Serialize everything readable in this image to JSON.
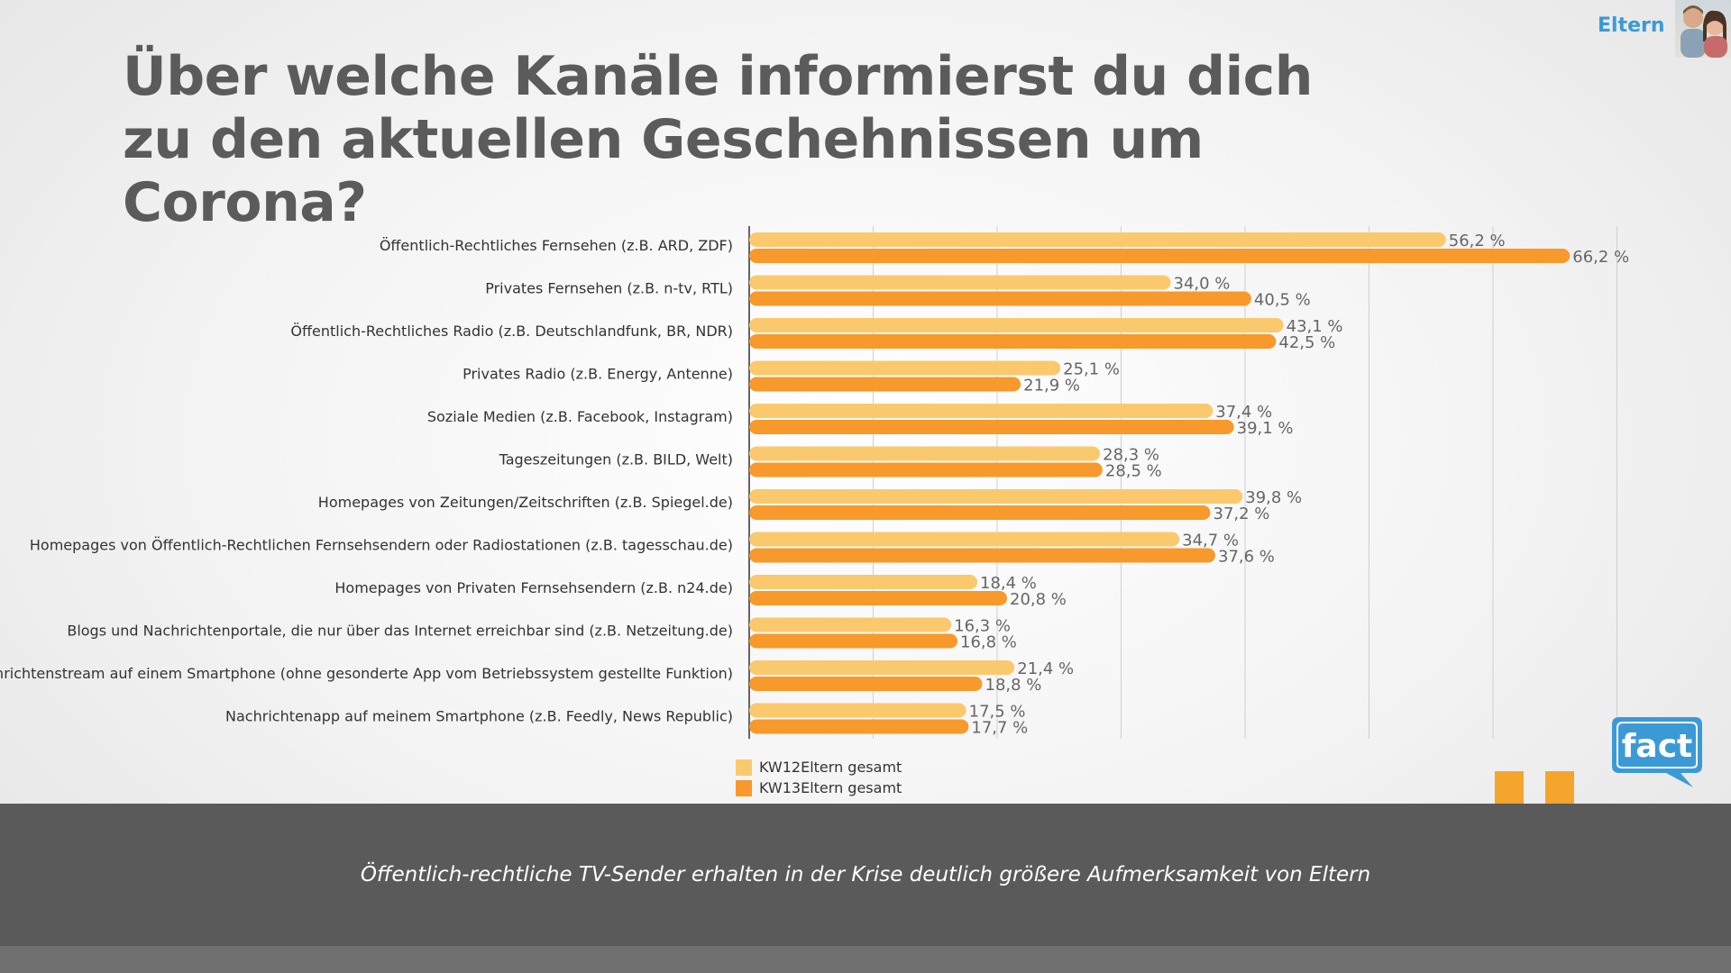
{
  "header": {
    "title": "Über welche Kanäle informierst du dich zu den aktuellen Geschehnissen um Corona?",
    "brand_label": "Eltern"
  },
  "footer": {
    "quote": "Öffentlich-rechtliche TV-Sender erhalten in der Krise deutlich größere Aufmerksamkeit von Eltern",
    "logo_text": "fact"
  },
  "colors": {
    "series1": "#fbc96d",
    "series2": "#f7992b",
    "title": "#5b5b5b",
    "brand": "#3b9ad6",
    "banner": "#5a5a5a"
  },
  "chart_data": {
    "type": "bar",
    "orientation": "horizontal",
    "title": "Über welche Kanäle informierst du dich zu den aktuellen Geschehnissen um Corona?",
    "categories": [
      "Öffentlich-Rechtliches Fernsehen (z.B. ARD, ZDF)",
      "Privates Fernsehen (z.B. n-tv, RTL)",
      "Öffentlich-Rechtliches Radio (z.B. Deutschlandfunk, BR, NDR)",
      "Privates Radio (z.B. Energy, Antenne)",
      "Soziale Medien (z.B. Facebook, Instagram)",
      "Tageszeitungen (z.B. BILD, Welt)",
      "Homepages von Zeitungen/Zeitschriften (z.B. Spiegel.de)",
      "Homepages von Öffentlich-Rechtlichen Fernsehsendern oder Radiostationen (z.B. tagesschau.de)",
      "Homepages von Privaten Fernsehsendern (z.B. n24.de)",
      "Blogs und Nachrichtenportale, die nur über das Internet erreichbar sind (z.B. Netzeitung.de)",
      "Nachrichtenstream auf einem Smartphone (ohne gesonderte App vom Betriebssystem gestellte Funktion)",
      "Nachrichtenapp auf meinem Smartphone (z.B. Feedly, News Republic)"
    ],
    "series": [
      {
        "name": "KW12Eltern gesamt",
        "values": [
          56.2,
          34.0,
          43.1,
          25.1,
          37.4,
          28.3,
          39.8,
          34.7,
          18.4,
          16.3,
          21.4,
          17.5
        ],
        "labels": [
          "56,2 %",
          "34,0 %",
          "43,1 %",
          "25,1 %",
          "37,4 %",
          "28,3 %",
          "39,8 %",
          "34,7 %",
          "18,4 %",
          "16,3 %",
          "21,4 %",
          "17,5 %"
        ]
      },
      {
        "name": "KW13Eltern gesamt",
        "values": [
          66.2,
          40.5,
          42.5,
          21.9,
          39.1,
          28.5,
          37.2,
          37.6,
          20.8,
          16.8,
          18.8,
          17.7
        ],
        "labels": [
          "66,2 %",
          "40,5 %",
          "42,5 %",
          "21,9 %",
          "39,1 %",
          "28,5 %",
          "37,2 %",
          "37,6 %",
          "20,8 %",
          "16,8 %",
          "18,8 %",
          "17,7 %"
        ]
      }
    ],
    "xlim": [
      0,
      70
    ],
    "grid": true,
    "legend_position": "bottom-left"
  }
}
